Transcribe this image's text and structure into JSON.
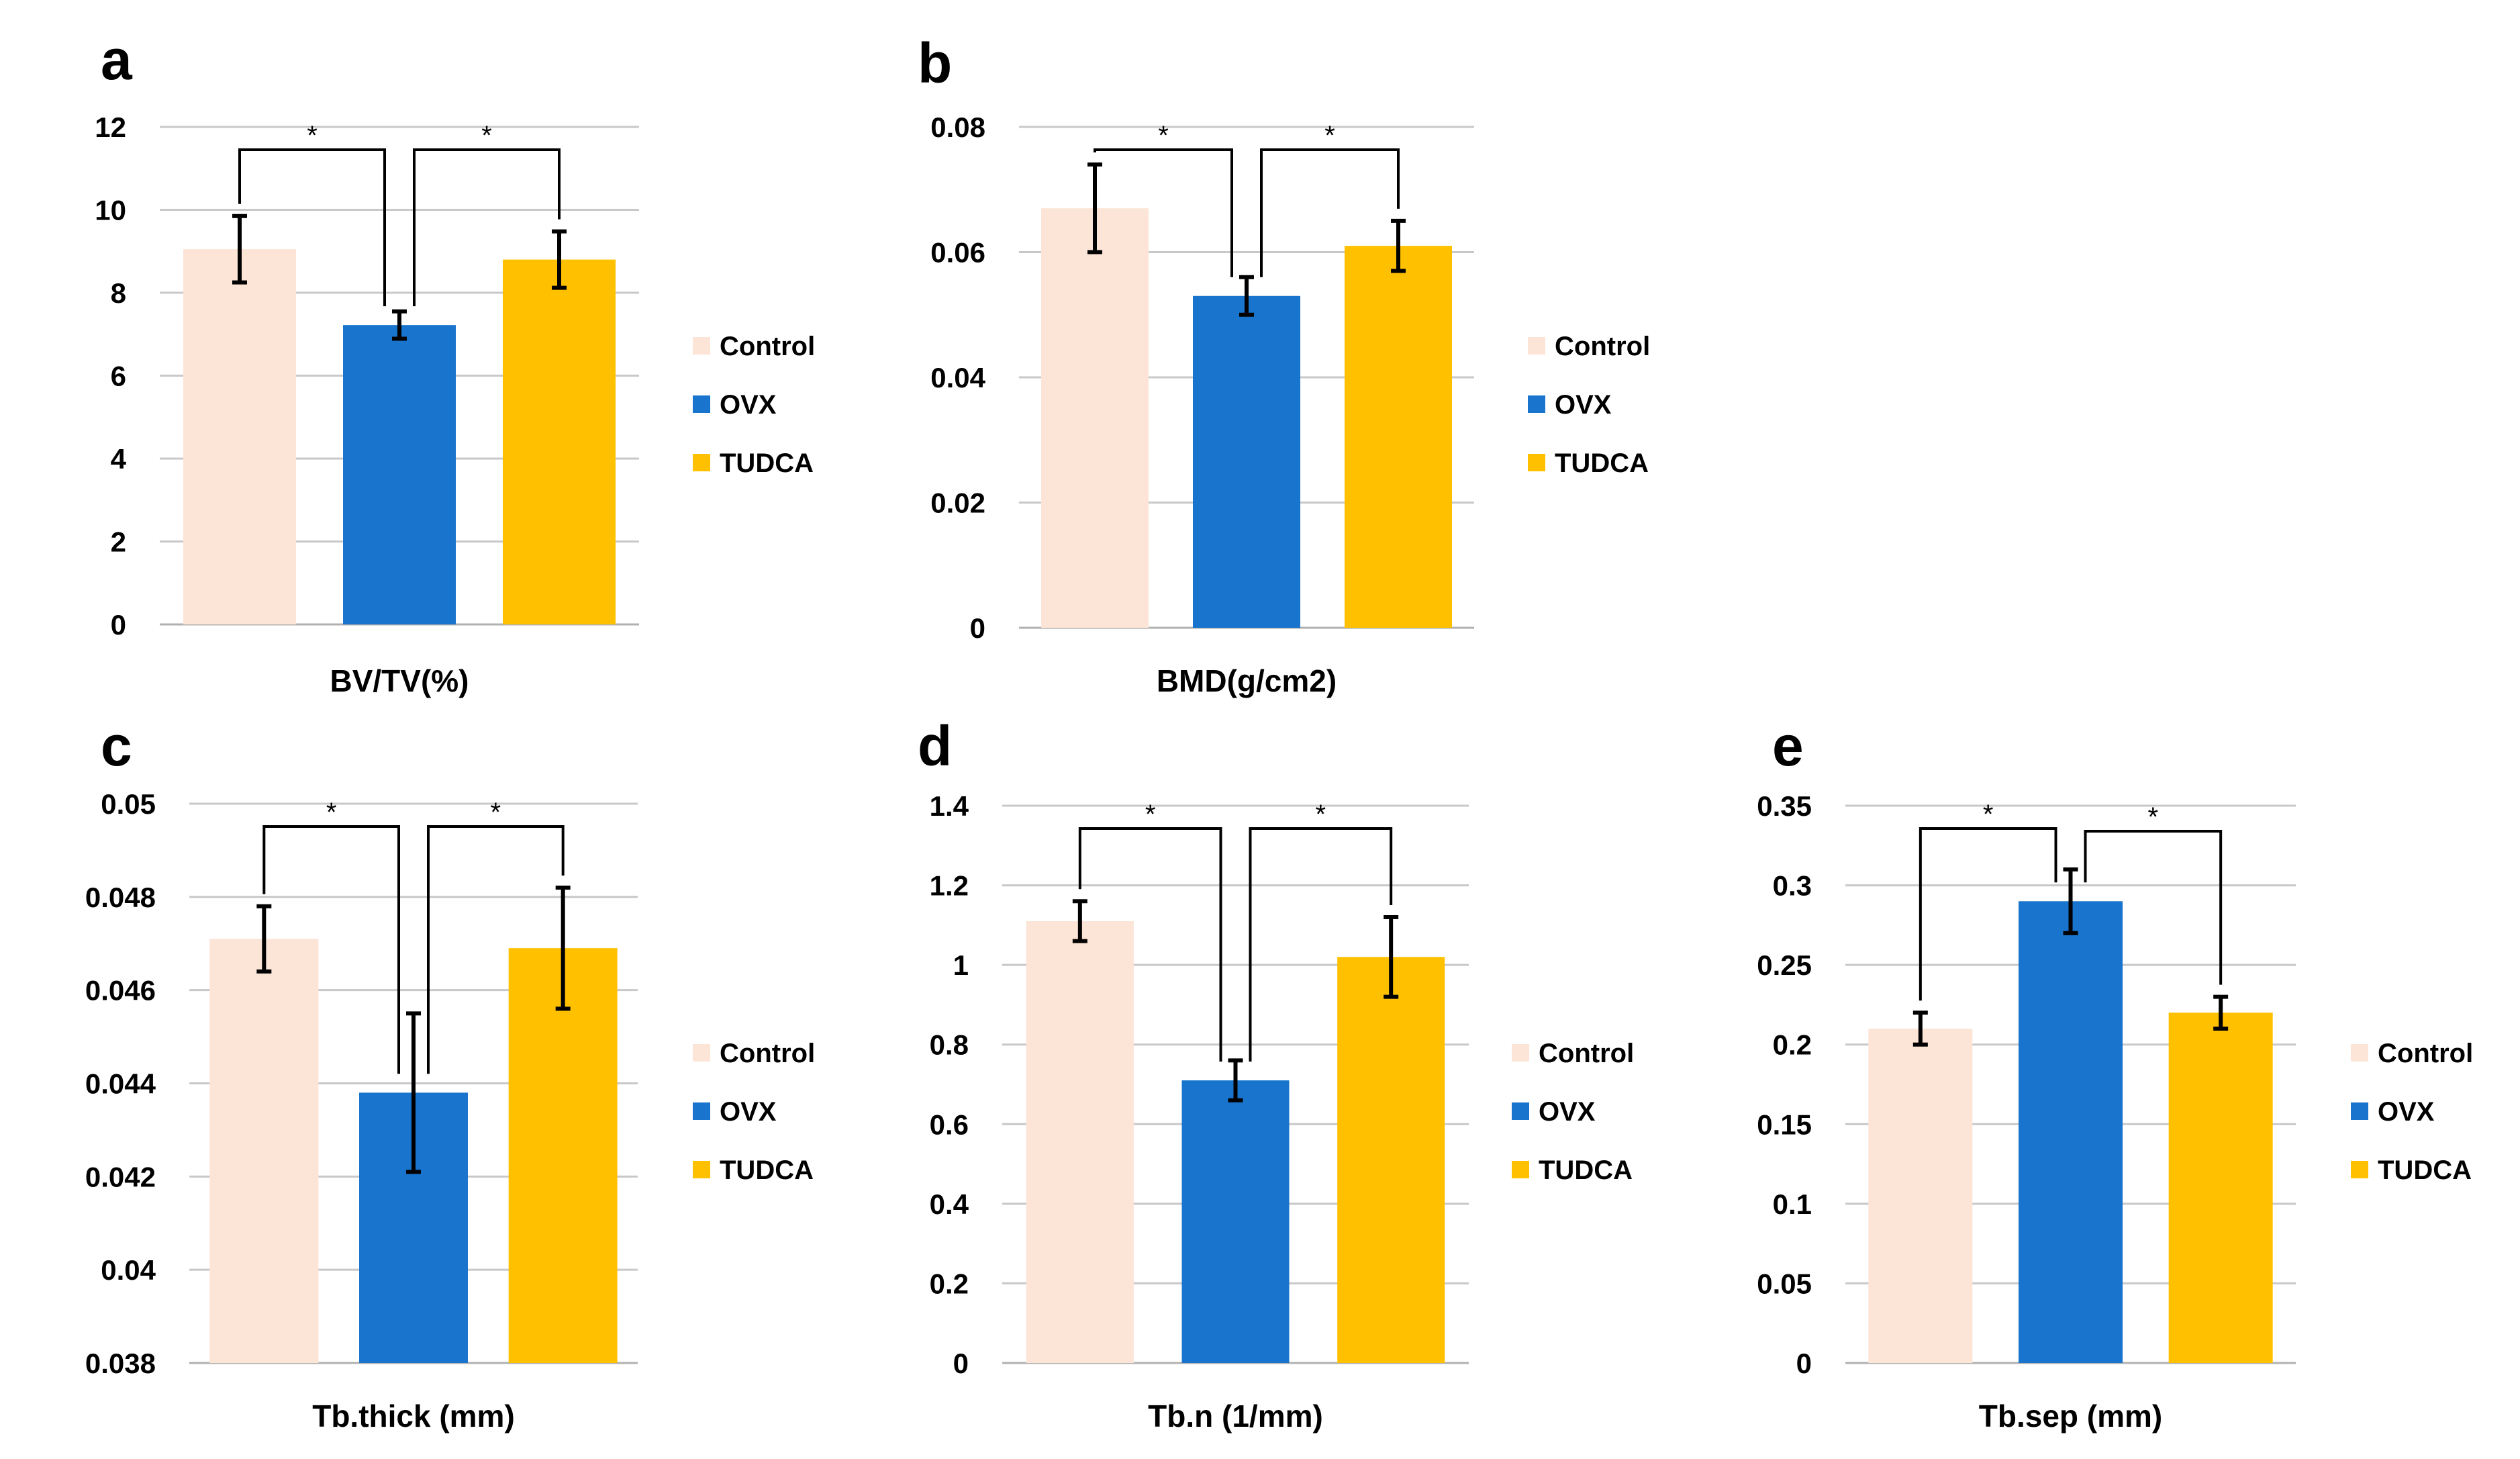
{
  "series_names": [
    "Control",
    "OVX",
    "TUDCA"
  ],
  "series_colors": [
    "#fce4d6",
    "#1874cd",
    "#ffc000"
  ],
  "chart_data": [
    {
      "type": "bar",
      "panel": "a",
      "xlabel": "BV/TV(%)",
      "categories": [
        "Control",
        "OVX",
        "TUDCA"
      ],
      "values": [
        9.05,
        7.22,
        8.8
      ],
      "errors": [
        0.8,
        0.33,
        0.68
      ],
      "ylim": [
        0,
        12
      ],
      "ticks": [
        0,
        2,
        4,
        6,
        8,
        10,
        12
      ],
      "tick_labels": [
        "0",
        "2",
        "4",
        "6",
        "8",
        "10",
        "12"
      ],
      "significance": [
        {
          "from": 0,
          "to": 1,
          "label": "*"
        },
        {
          "from": 1,
          "to": 2,
          "label": "*"
        }
      ],
      "legend": [
        "Control",
        "OVX",
        "TUDCA"
      ]
    },
    {
      "type": "bar",
      "panel": "b",
      "xlabel": "BMD(g/cm2)",
      "categories": [
        "Control",
        "OVX",
        "TUDCA"
      ],
      "values": [
        0.067,
        0.053,
        0.061
      ],
      "errors": [
        0.007,
        0.003,
        0.004
      ],
      "ylim": [
        0,
        0.08
      ],
      "ticks": [
        0,
        0.02,
        0.04,
        0.06,
        0.08
      ],
      "tick_labels": [
        "0",
        "0.02",
        "0.04",
        "0.06",
        "0.08"
      ],
      "significance": [
        {
          "from": 0,
          "to": 1,
          "label": "*"
        },
        {
          "from": 1,
          "to": 2,
          "label": "*"
        }
      ],
      "legend": [
        "Control",
        "OVX",
        "TUDCA"
      ]
    },
    {
      "type": "bar",
      "panel": "c",
      "xlabel": "Tb.thick (mm)",
      "categories": [
        "Control",
        "OVX",
        "TUDCA"
      ],
      "values": [
        0.0471,
        0.0438,
        0.0469
      ],
      "errors": [
        0.0007,
        0.0017,
        0.0013
      ],
      "ylim": [
        0.038,
        0.05
      ],
      "ticks": [
        0.038,
        0.04,
        0.042,
        0.044,
        0.046,
        0.048,
        0.05
      ],
      "tick_labels": [
        "0.038",
        "0.04",
        "0.042",
        "0.044",
        "0.046",
        "0.048",
        "0.05"
      ],
      "significance": [
        {
          "from": 0,
          "to": 1,
          "label": "*"
        },
        {
          "from": 1,
          "to": 2,
          "label": "*"
        }
      ],
      "legend": [
        "Control",
        "OVX",
        "TUDCA"
      ]
    },
    {
      "type": "bar",
      "panel": "d",
      "xlabel": "Tb.n (1/mm)",
      "categories": [
        "Control",
        "OVX",
        "TUDCA"
      ],
      "values": [
        1.11,
        0.71,
        1.02
      ],
      "errors": [
        0.05,
        0.05,
        0.1
      ],
      "ylim": [
        0,
        1.4
      ],
      "ticks": [
        0,
        0.2,
        0.4,
        0.6,
        0.8,
        1,
        1.2,
        1.4
      ],
      "tick_labels": [
        "0",
        "0.2",
        "0.4",
        "0.6",
        "0.8",
        "1",
        "1.2",
        "1.4"
      ],
      "significance": [
        {
          "from": 0,
          "to": 1,
          "label": "*"
        },
        {
          "from": 1,
          "to": 2,
          "label": "*"
        }
      ],
      "legend": [
        "Control",
        "OVX",
        "TUDCA"
      ]
    },
    {
      "type": "bar",
      "panel": "e",
      "xlabel": "Tb.sep (mm)",
      "categories": [
        "Control",
        "OVX",
        "TUDCA"
      ],
      "values": [
        0.21,
        0.29,
        0.22
      ],
      "errors": [
        0.01,
        0.02,
        0.01
      ],
      "ylim": [
        0,
        0.35
      ],
      "ticks": [
        0,
        0.05,
        0.1,
        0.15,
        0.2,
        0.25,
        0.3,
        0.35
      ],
      "tick_labels": [
        "0",
        "0.05",
        "0.1",
        "0.15",
        "0.2",
        "0.25",
        "0.3",
        "0.35"
      ],
      "significance": [
        {
          "from": 0,
          "to": 1,
          "label": "*"
        },
        {
          "from": 1,
          "to": 2,
          "label": "*"
        }
      ],
      "legend": [
        "Control",
        "OVX",
        "TUDCA"
      ]
    }
  ]
}
